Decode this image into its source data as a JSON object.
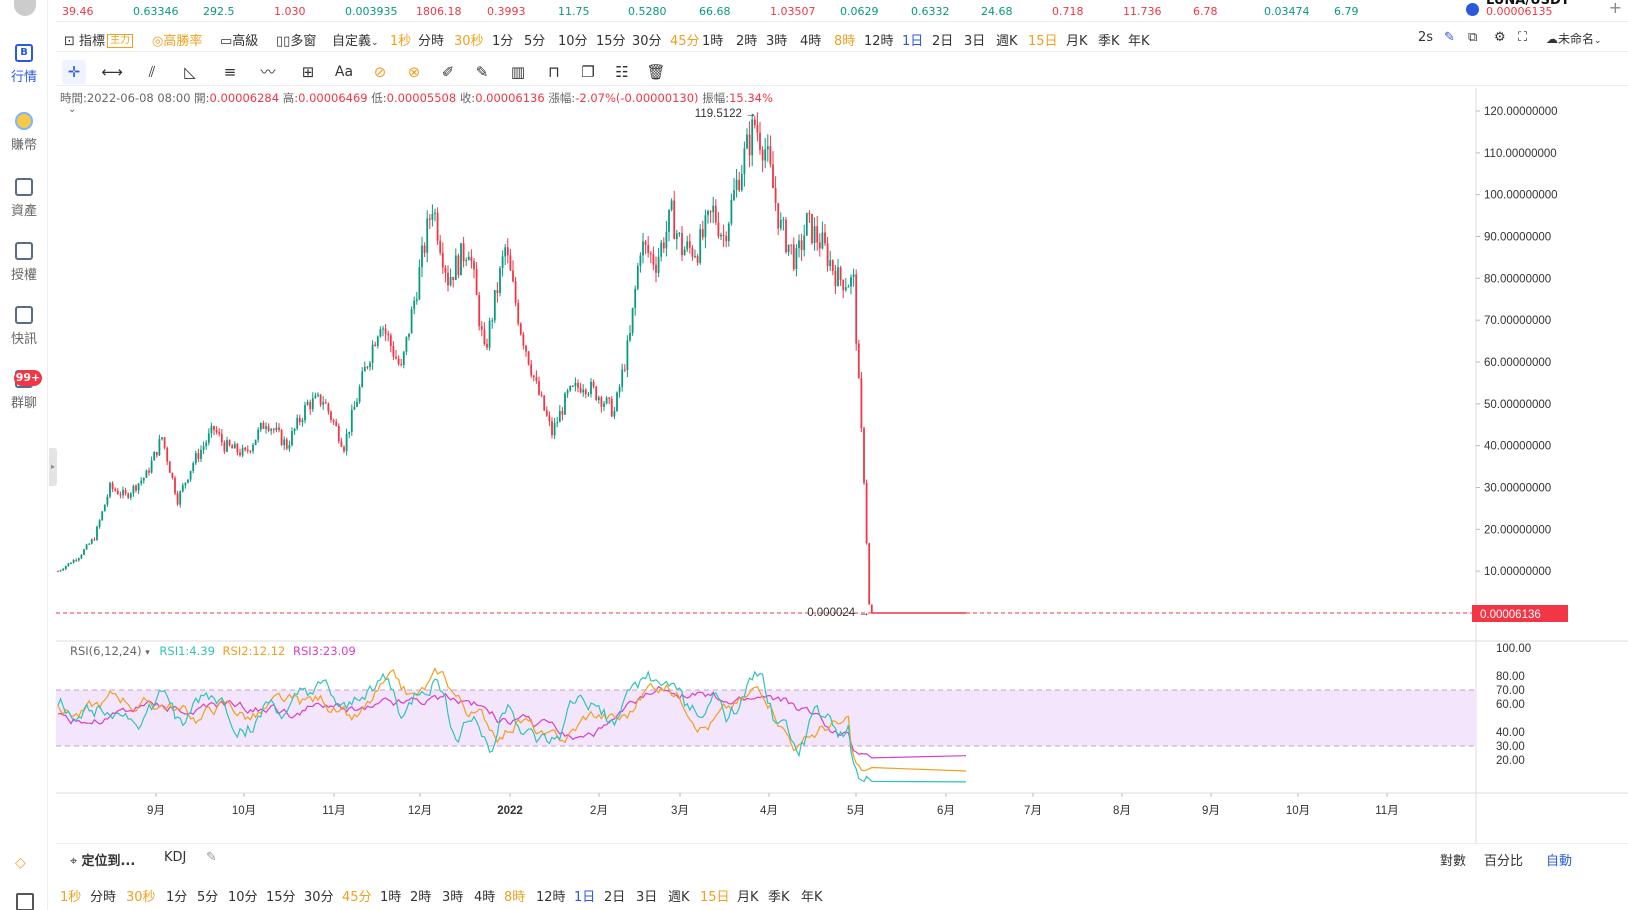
{
  "ticker": {
    "items": [
      {
        "value": "39.46",
        "color": "red"
      },
      {
        "value": "0.63346",
        "color": "grn"
      },
      {
        "value": "292.5",
        "color": "grn"
      },
      {
        "value": "1.030",
        "color": "red"
      },
      {
        "value": "0.003935",
        "color": "grn"
      },
      {
        "value": "1806.18",
        "color": "red"
      },
      {
        "value": "0.3993",
        "color": "red"
      },
      {
        "value": "11.75",
        "color": "grn"
      },
      {
        "value": "0.5280",
        "color": "grn"
      },
      {
        "value": "66.68",
        "color": "grn"
      },
      {
        "value": "1.03507",
        "color": "red"
      },
      {
        "value": "0.0629",
        "color": "grn"
      },
      {
        "value": "0.6332",
        "color": "grn"
      },
      {
        "value": "24.68",
        "color": "grn"
      },
      {
        "value": "0.718",
        "color": "red"
      },
      {
        "value": "11.736",
        "color": "red"
      },
      {
        "value": "6.78",
        "color": "red"
      },
      {
        "value": "0.03474",
        "color": "grn"
      },
      {
        "value": "6.79",
        "color": "grn"
      }
    ],
    "pair_name": "LUNA/USDT",
    "pair_price": "0.00006135"
  },
  "sidebar": {
    "items": [
      {
        "label": "行情",
        "icon": "B"
      },
      {
        "label": "賺幣",
        "icon": ""
      },
      {
        "label": "資產",
        "icon": ""
      },
      {
        "label": "授權",
        "icon": ""
      },
      {
        "label": "快訊",
        "icon": ""
      },
      {
        "label": "群聊",
        "icon": ""
      }
    ],
    "badge": "99+"
  },
  "toolbar": {
    "indicator": "指標",
    "main_tag": "主力",
    "winrate": "高勝率",
    "advanced": "高級",
    "multiwin": "多窗",
    "custom": "自定義",
    "intervals": [
      "1秒",
      "分時",
      "30秒",
      "1分",
      "5分",
      "10分",
      "15分",
      "30分",
      "45分",
      "1時",
      "2時",
      "3時",
      "4時",
      "8時",
      "12時",
      "1日",
      "2日",
      "3日",
      "週K",
      "15日",
      "月K",
      "季K",
      "年K"
    ],
    "refresh": "2s",
    "layout_name": "未命名"
  },
  "bottom_intervals": [
    "1秒",
    "分時",
    "30秒",
    "1分",
    "5分",
    "10分",
    "15分",
    "30分",
    "45分",
    "1時",
    "2時",
    "3時",
    "4時",
    "8時",
    "12時",
    "1日",
    "2日",
    "3日",
    "週K",
    "15日",
    "月K",
    "季K",
    "年K"
  ],
  "info": {
    "time_label": "時間:",
    "time": "2022-06-08 08:00",
    "open_label": "開:",
    "open": "0.00006284",
    "high_label": "高:",
    "high": "0.00006469",
    "low_label": "低:",
    "low": "0.00005508",
    "close_label": "收:",
    "close": "0.00006136",
    "change_label": "漲幅:",
    "change": "-2.07%(-0.00000130)",
    "amp_label": "振幅:",
    "amp": "15.34%"
  },
  "rsi": {
    "name": "RSI(6,12,24)",
    "rsi1": "RSI1:4.39",
    "rsi2": "RSI2:12.12",
    "rsi3": "RSI3:23.09"
  },
  "bottombar": {
    "locate": "定位到...",
    "kdj": "KDJ",
    "log": "對數",
    "percent": "百分比",
    "auto": "自動"
  },
  "colors": {
    "up": "#089981",
    "down": "#f23645",
    "accent": "#2a5ada",
    "rsi1": "#2ec4b6",
    "rsi2": "#f0a020",
    "rsi3": "#d63fc7",
    "band": "#f3e5fb"
  },
  "chart_data": {
    "type": "candlestick",
    "price_ticks": [
      "120.00000000",
      "110.00000000",
      "100.00000000",
      "90.00000000",
      "80.00000000",
      "70.00000000",
      "60.00000000",
      "50.00000000",
      "40.00000000",
      "30.00000000",
      "20.00000000",
      "10.00000000"
    ],
    "last_price": "0.00006136",
    "high_label": "119.5122",
    "low_label": "0.000024",
    "month_labels": [
      "9月",
      "10月",
      "11月",
      "12月",
      "2022",
      "2月",
      "3月",
      "4月",
      "5月",
      "6月",
      "7月",
      "8月",
      "9月",
      "10月",
      "11月"
    ],
    "rsi_ticks": [
      "100.00",
      "80.00",
      "70.00",
      "60.00",
      "40.00",
      "30.00",
      "20.00"
    ],
    "anchors": [
      [
        0,
        10
      ],
      [
        8,
        13.5
      ],
      [
        14,
        18
      ],
      [
        20,
        30
      ],
      [
        26,
        28
      ],
      [
        34,
        33
      ],
      [
        40,
        42
      ],
      [
        46,
        27
      ],
      [
        52,
        36
      ],
      [
        60,
        44
      ],
      [
        64,
        40
      ],
      [
        72,
        38
      ],
      [
        80,
        46
      ],
      [
        88,
        40
      ],
      [
        96,
        50
      ],
      [
        102,
        51
      ],
      [
        110,
        40
      ],
      [
        118,
        58
      ],
      [
        124,
        70
      ],
      [
        132,
        58
      ],
      [
        138,
        78
      ],
      [
        144,
        98
      ],
      [
        150,
        80
      ],
      [
        158,
        88
      ],
      [
        164,
        62
      ],
      [
        172,
        87
      ],
      [
        178,
        68
      ],
      [
        184,
        54
      ],
      [
        190,
        43
      ],
      [
        196,
        52
      ],
      [
        202,
        55
      ],
      [
        208,
        52
      ],
      [
        214,
        48
      ],
      [
        220,
        66
      ],
      [
        224,
        88
      ],
      [
        230,
        84
      ],
      [
        236,
        95
      ],
      [
        240,
        87
      ],
      [
        246,
        87
      ],
      [
        252,
        96
      ],
      [
        256,
        90
      ],
      [
        262,
        105
      ],
      [
        268,
        117
      ],
      [
        272,
        111
      ],
      [
        278,
        92
      ],
      [
        284,
        84
      ],
      [
        288,
        93
      ],
      [
        294,
        88
      ],
      [
        300,
        80
      ],
      [
        306,
        79
      ],
      [
        308,
        54
      ],
      [
        310,
        32
      ],
      [
        312,
        2
      ],
      [
        313,
        6e-05
      ]
    ],
    "rsi_values": {
      "rsi1": "4.39",
      "rsi2": "12.12",
      "rsi3": "23.09"
    }
  }
}
